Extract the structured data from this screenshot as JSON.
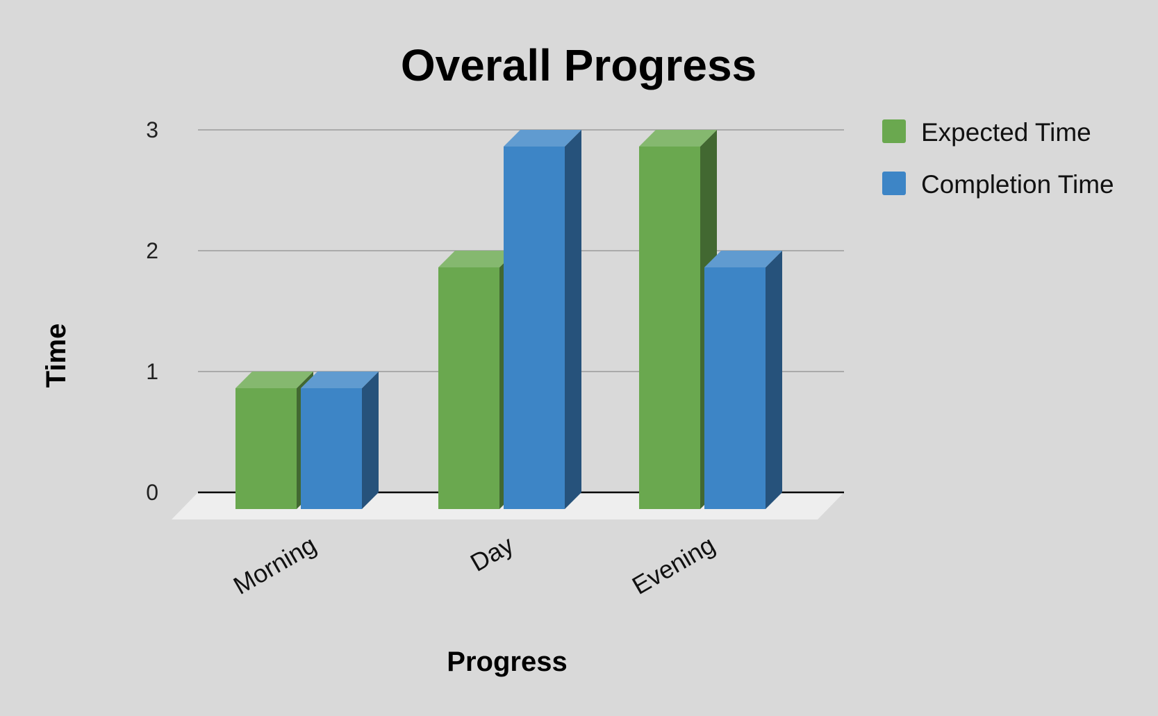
{
  "chart_data": {
    "type": "bar",
    "title": "Overall Progress",
    "xlabel": "Progress",
    "ylabel": "Time",
    "categories": [
      "Morning",
      "Day",
      "Evening"
    ],
    "series": [
      {
        "name": "Expected Time",
        "values": [
          1,
          2,
          3
        ],
        "color": "#6aa84f"
      },
      {
        "name": "Completion Time",
        "values": [
          1,
          3,
          2
        ],
        "color": "#3d85c6"
      }
    ],
    "ylim": [
      0,
      3
    ],
    "yticks": [
      0,
      1,
      2,
      3
    ],
    "grid": true,
    "legend_position": "top-right",
    "style": "3d"
  }
}
